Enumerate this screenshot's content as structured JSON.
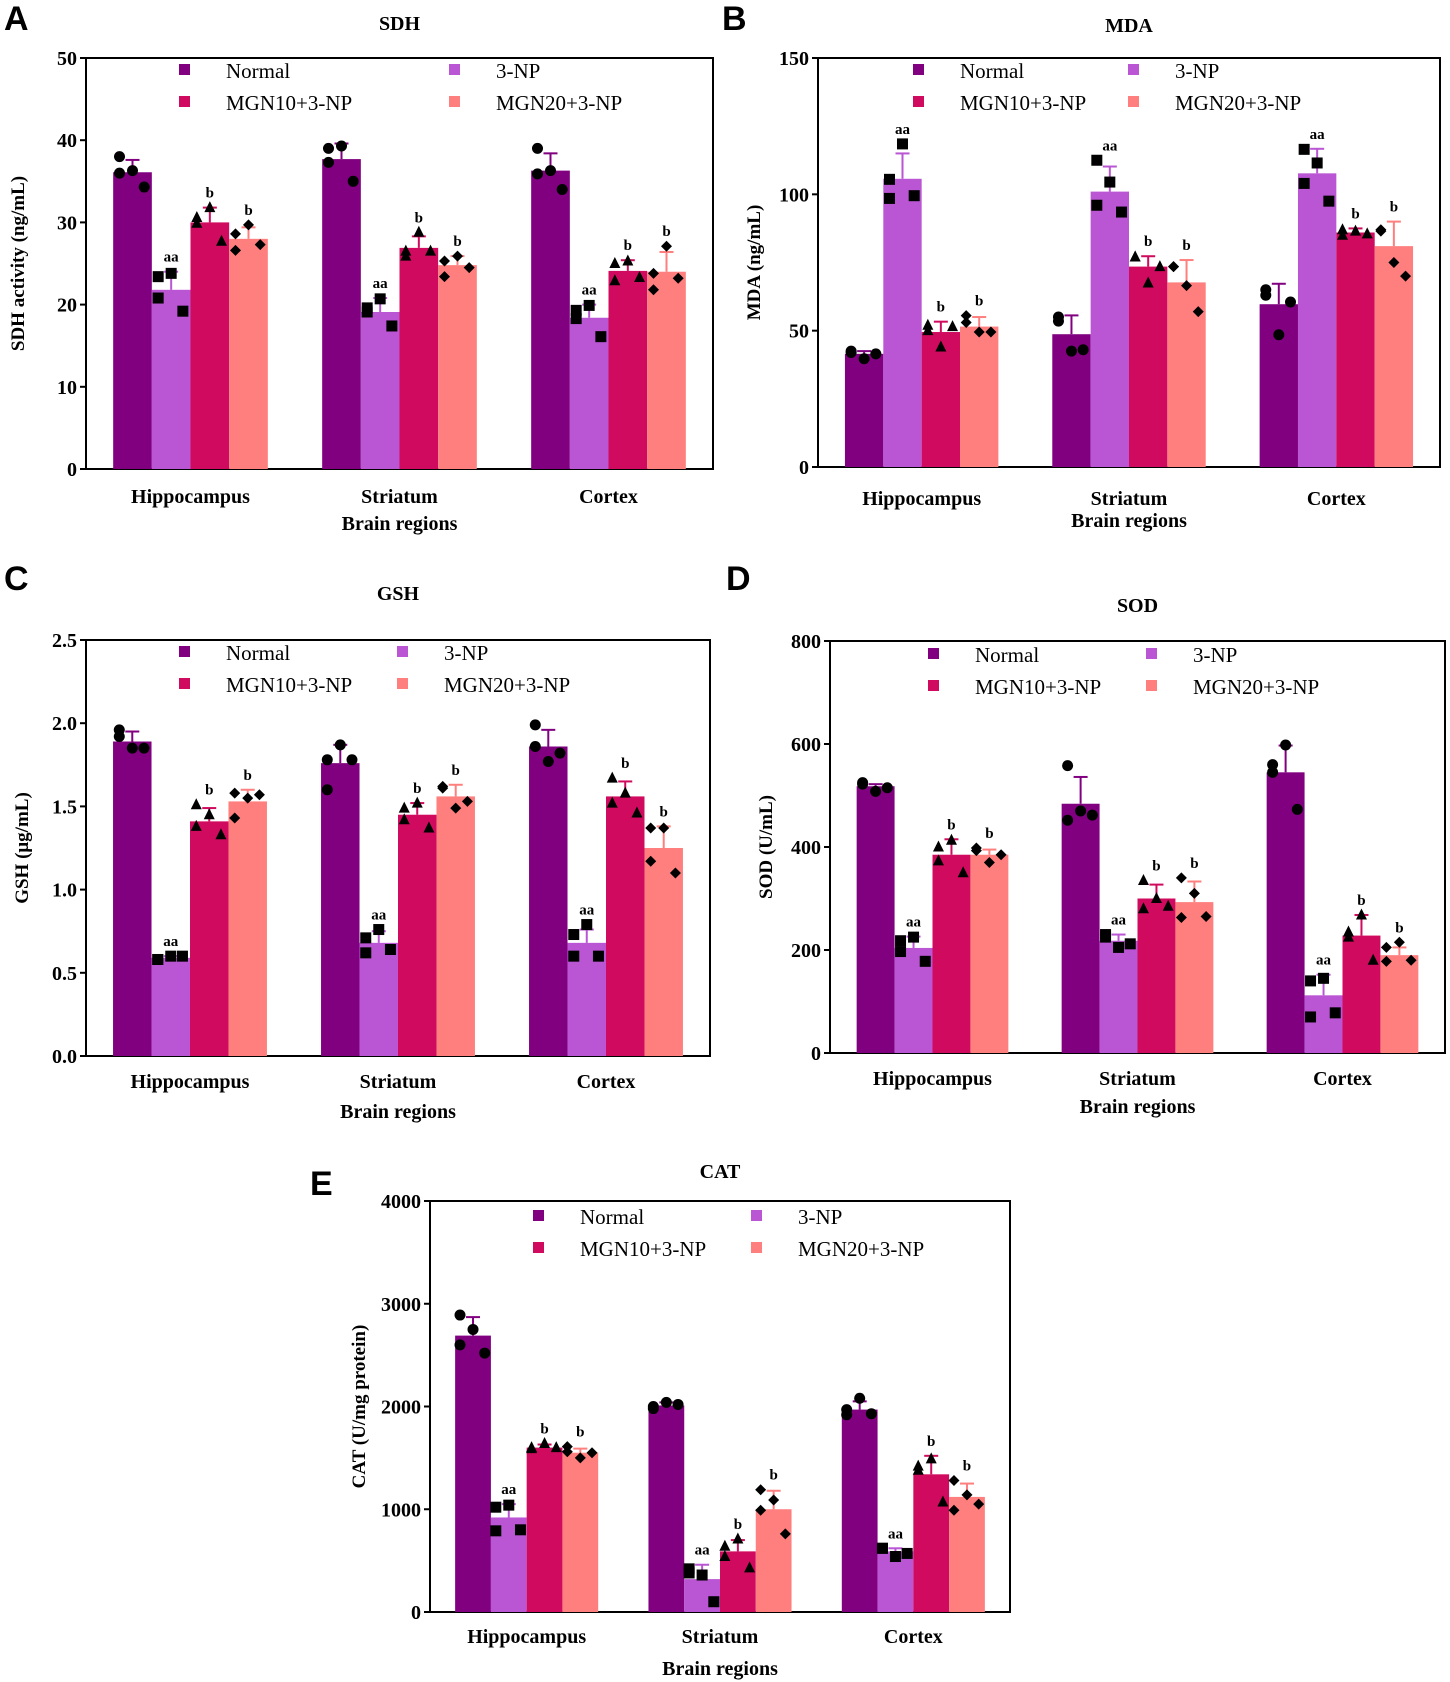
{
  "figure": {
    "groups": [
      "Normal",
      "3-NP",
      "MGN10+3-NP",
      "MGN20+3-NP"
    ],
    "group_colors": [
      "#800080",
      "#BA55D3",
      "#D00A5E",
      "#FF7F7F"
    ],
    "group_markers": [
      "circle",
      "square",
      "triangle",
      "diamond"
    ],
    "categories": [
      "Hippocampus",
      "Striatum",
      "Cortex"
    ],
    "xlabel": "Brain regions"
  },
  "chart_data": [
    {
      "id": "A",
      "letter": "A",
      "type": "bar",
      "title": "SDH",
      "ylabel": "SDH activity (ng/mL)",
      "xlabel": "Brain regions",
      "categories": [
        "Hippocampus",
        "Striatum",
        "Cortex"
      ],
      "ylim": [
        0,
        50
      ],
      "yticks": [
        0,
        10,
        20,
        30,
        40,
        50
      ],
      "ytick_labels": [
        "0",
        "10",
        "20",
        "30",
        "40",
        "50"
      ],
      "legend": "top-center",
      "series": [
        {
          "name": "Normal",
          "values": [
            36.1,
            37.7,
            36.3
          ],
          "errors": [
            1.5,
            1.9,
            2.1
          ],
          "points": [
            [
              38.0,
              36.3,
              36.0,
              34.3
            ],
            [
              39.0,
              39.3,
              37.3,
              35.0
            ],
            [
              39.0,
              36.3,
              35.9,
              34.0
            ]
          ],
          "sig": [
            "",
            "",
            ""
          ]
        },
        {
          "name": "3-NP",
          "values": [
            21.8,
            19.1,
            18.4
          ],
          "errors": [
            2.2,
            1.7,
            1.6
          ],
          "points": [
            [
              23.4,
              23.8,
              20.8,
              19.2
            ],
            [
              19.6,
              20.7,
              19.1,
              17.4
            ],
            [
              19.3,
              19.9,
              18.3,
              16.1
            ]
          ],
          "sig": [
            "aa",
            "aa",
            "aa"
          ]
        },
        {
          "name": "MGN10+3-NP",
          "values": [
            30.0,
            26.9,
            24.1
          ],
          "errors": [
            1.8,
            1.4,
            1.3
          ],
          "points": [
            [
              30.6,
              31.8,
              29.9,
              27.7
            ],
            [
              25.9,
              28.8,
              26.5,
              26.5
            ],
            [
              25.0,
              25.3,
              22.9,
              23.3
            ]
          ],
          "sig": [
            "b",
            "b",
            "b"
          ]
        },
        {
          "name": "MGN20+3-NP",
          "values": [
            28.0,
            24.8,
            24.0
          ],
          "errors": [
            1.4,
            1.1,
            2.4
          ],
          "points": [
            [
              26.6,
              29.7,
              28.6,
              27.3
            ],
            [
              25.3,
              25.9,
              23.4,
              24.5
            ],
            [
              23.8,
              27.1,
              21.8,
              23.2
            ]
          ],
          "sig": [
            "b",
            "b",
            "b"
          ]
        }
      ]
    },
    {
      "id": "B",
      "letter": "B",
      "type": "bar",
      "title": "MDA",
      "ylabel": "MDA (ng/mL)",
      "xlabel": "Brain regions",
      "categories": [
        "Hippocampus",
        "Striatum",
        "Cortex"
      ],
      "ylim": [
        0,
        150
      ],
      "yticks": [
        0,
        50,
        100,
        150
      ],
      "ytick_labels": [
        "0",
        "50",
        "100",
        "150"
      ],
      "legend": "top-center",
      "series": [
        {
          "name": "Normal",
          "values": [
            41.5,
            48.7,
            59.7
          ],
          "errors": [
            1.0,
            6.9,
            7.5
          ],
          "points": [
            [
              42.5,
              39.7,
              42.0,
              41.5
            ],
            [
              53.5,
              42.5,
              55.0,
              43.0
            ],
            [
              63.0,
              48.5,
              65.0,
              60.5
            ]
          ],
          "sig": [
            "",
            "",
            ""
          ]
        },
        {
          "name": "3-NP",
          "values": [
            105.7,
            101.0,
            107.7
          ],
          "errors": [
            9.3,
            9.2,
            9.0
          ],
          "points": [
            [
              98.5,
              118.5,
              105.5,
              99.5
            ],
            [
              112.5,
              104.5,
              96.0,
              93.5
            ],
            [
              116.5,
              111.5,
              104.0,
              97.5
            ]
          ],
          "sig": [
            "aa",
            "aa",
            "aa"
          ]
        },
        {
          "name": "MGN10+3-NP",
          "values": [
            49.5,
            73.5,
            86.0
          ],
          "errors": [
            3.8,
            3.8,
            1.5
          ],
          "points": [
            [
              52.0,
              44.0,
              50.0,
              51.5
            ],
            [
              77.0,
              67.5,
              77.0,
              73.5
            ],
            [
              85.0,
              86.5,
              87.0,
              85.5
            ]
          ],
          "sig": [
            "b",
            "b",
            "b"
          ]
        },
        {
          "name": "MGN20+3-NP",
          "values": [
            51.5,
            67.7,
            81.0
          ],
          "errors": [
            3.5,
            8.2,
            9.0
          ],
          "points": [
            [
              53.0,
              49.5,
              55.5,
              49.5
            ],
            [
              73.5,
              66.5,
              73.5,
              57.0
            ],
            [
              86.5,
              75.0,
              87.0,
              70.0
            ]
          ],
          "sig": [
            "b",
            "b",
            "b"
          ]
        }
      ]
    },
    {
      "id": "C",
      "letter": "C",
      "type": "bar",
      "title": "GSH",
      "ylabel": "GSH (μg/mL)",
      "xlabel": "Brain regions",
      "categories": [
        "Hippocampus",
        "Striatum",
        "Cortex"
      ],
      "ylim": [
        0,
        2.5
      ],
      "yticks": [
        0,
        0.5,
        1.0,
        1.5,
        2.0,
        2.5
      ],
      "ytick_labels": [
        "0.0",
        "0.5",
        "1.0",
        "1.5",
        "2.0",
        "2.5"
      ],
      "legend": "top-center",
      "series": [
        {
          "name": "Normal",
          "values": [
            1.89,
            1.76,
            1.86
          ],
          "errors": [
            0.06,
            0.11,
            0.1
          ],
          "points": [
            [
              1.92,
              1.85,
              1.96,
              1.85
            ],
            [
              1.78,
              1.87,
              1.6,
              1.78
            ],
            [
              1.86,
              1.77,
              1.99,
              1.82
            ]
          ],
          "sig": [
            "",
            "",
            ""
          ]
        },
        {
          "name": "3-NP",
          "values": [
            0.59,
            0.68,
            0.68
          ],
          "errors": [
            0.01,
            0.07,
            0.08
          ],
          "points": [
            [
              0.58,
              0.6,
              0.58,
              0.6
            ],
            [
              0.62,
              0.76,
              0.71,
              0.64
            ],
            [
              0.6,
              0.79,
              0.73,
              0.6
            ]
          ],
          "sig": [
            "aa",
            "aa",
            "aa"
          ]
        },
        {
          "name": "MGN10+3-NP",
          "values": [
            1.41,
            1.45,
            1.56
          ],
          "errors": [
            0.08,
            0.07,
            0.09
          ],
          "points": [
            [
              1.51,
              1.45,
              1.38,
              1.33
            ],
            [
              1.49,
              1.52,
              1.42,
              1.37
            ],
            [
              1.67,
              1.58,
              1.52,
              1.46
            ]
          ],
          "sig": [
            "b",
            "b",
            "b"
          ]
        },
        {
          "name": "MGN20+3-NP",
          "values": [
            1.53,
            1.56,
            1.25
          ],
          "errors": [
            0.07,
            0.07,
            0.13
          ],
          "points": [
            [
              1.58,
              1.55,
              1.43,
              1.57
            ],
            [
              1.61,
              1.49,
              1.62,
              1.53
            ],
            [
              1.37,
              1.37,
              1.17,
              1.1
            ]
          ],
          "sig": [
            "b",
            "b",
            "b"
          ]
        }
      ]
    },
    {
      "id": "D",
      "letter": "D",
      "type": "bar",
      "title": "SOD",
      "ylabel": "SOD (U/mL)",
      "xlabel": "Brain regions",
      "categories": [
        "Hippocampus",
        "Striatum",
        "Cortex"
      ],
      "ylim": [
        0,
        800
      ],
      "yticks": [
        0,
        200,
        400,
        600,
        800
      ],
      "ytick_labels": [
        "0",
        "200",
        "400",
        "600",
        "800"
      ],
      "legend": "top-center",
      "series": [
        {
          "name": "Normal",
          "values": [
            518,
            484,
            545
          ],
          "errors": [
            4,
            52,
            52
          ],
          "points": [
            [
              525,
              508,
              522,
              515
            ],
            [
              558,
              470,
              452,
              462
            ],
            [
              560,
              598,
              545,
              473
            ]
          ],
          "sig": [
            "",
            "",
            ""
          ]
        },
        {
          "name": "3-NP",
          "values": [
            204,
            218,
            112
          ],
          "errors": [
            22,
            12,
            40
          ],
          "points": [
            [
              218,
              225,
              197,
              178
            ],
            [
              225,
              205,
              230,
              212
            ],
            [
              140,
              145,
              70,
              78
            ]
          ],
          "sig": [
            "aa",
            "aa",
            "aa"
          ]
        },
        {
          "name": "MGN10+3-NP",
          "values": [
            385,
            300,
            228
          ],
          "errors": [
            30,
            27,
            40
          ],
          "points": [
            [
              400,
              413,
              373,
              350
            ],
            [
              335,
              300,
              280,
              285
            ],
            [
              235,
              268,
              225,
              180
            ]
          ],
          "sig": [
            "b",
            "b",
            "b"
          ]
        },
        {
          "name": "MGN20+3-NP",
          "values": [
            385,
            293,
            190
          ],
          "errors": [
            10,
            40,
            15
          ],
          "points": [
            [
              398,
              370,
              393,
              385
            ],
            [
              340,
              310,
              263,
              265
            ],
            [
              205,
              215,
              178,
              180
            ]
          ],
          "sig": [
            "b",
            "b",
            "b"
          ]
        }
      ]
    },
    {
      "id": "E",
      "letter": "E",
      "type": "bar",
      "title": "CAT",
      "ylabel": "CAT (U/mg protein)",
      "xlabel": "Brain regions",
      "categories": [
        "Hippocampus",
        "Striatum",
        "Cortex"
      ],
      "ylim": [
        0,
        4000
      ],
      "yticks": [
        0,
        1000,
        2000,
        3000,
        4000
      ],
      "ytick_labels": [
        "0",
        "1000",
        "2000",
        "3000",
        "4000"
      ],
      "legend": "top-center",
      "series": [
        {
          "name": "Normal",
          "values": [
            2690,
            2010,
            1970
          ],
          "errors": [
            180,
            30,
            80
          ],
          "points": [
            [
              2890,
              2750,
              2600,
              2520
            ],
            [
              1980,
              2040,
              2000,
              2020
            ],
            [
              1920,
              2080,
              1970,
              1930
            ]
          ],
          "sig": [
            "",
            "",
            ""
          ]
        },
        {
          "name": "3-NP",
          "values": [
            920,
            320,
            590
          ],
          "errors": [
            130,
            140,
            30
          ],
          "points": [
            [
              1020,
              1040,
              790,
              800
            ],
            [
              420,
              360,
              380,
              100
            ],
            [
              620,
              540,
              620,
              570
            ]
          ],
          "sig": [
            "aa",
            "aa",
            "aa"
          ]
        },
        {
          "name": "MGN10+3-NP",
          "values": [
            1600,
            590,
            1340
          ],
          "errors": [
            30,
            110,
            180
          ],
          "points": [
            [
              1590,
              1640,
              1600,
              1600
            ],
            [
              640,
              710,
              540,
              430
            ],
            [
              1420,
              1490,
              1380,
              1070
            ]
          ],
          "sig": [
            "b",
            "b",
            "b"
          ]
        },
        {
          "name": "MGN20+3-NP",
          "values": [
            1550,
            1000,
            1120
          ],
          "errors": [
            40,
            180,
            130
          ],
          "points": [
            [
              1610,
              1500,
              1560,
              1550
            ],
            [
              1190,
              1090,
              990,
              760
            ],
            [
              1280,
              1140,
              990,
              1050
            ]
          ],
          "sig": [
            "b",
            "b",
            "b"
          ]
        }
      ]
    }
  ]
}
